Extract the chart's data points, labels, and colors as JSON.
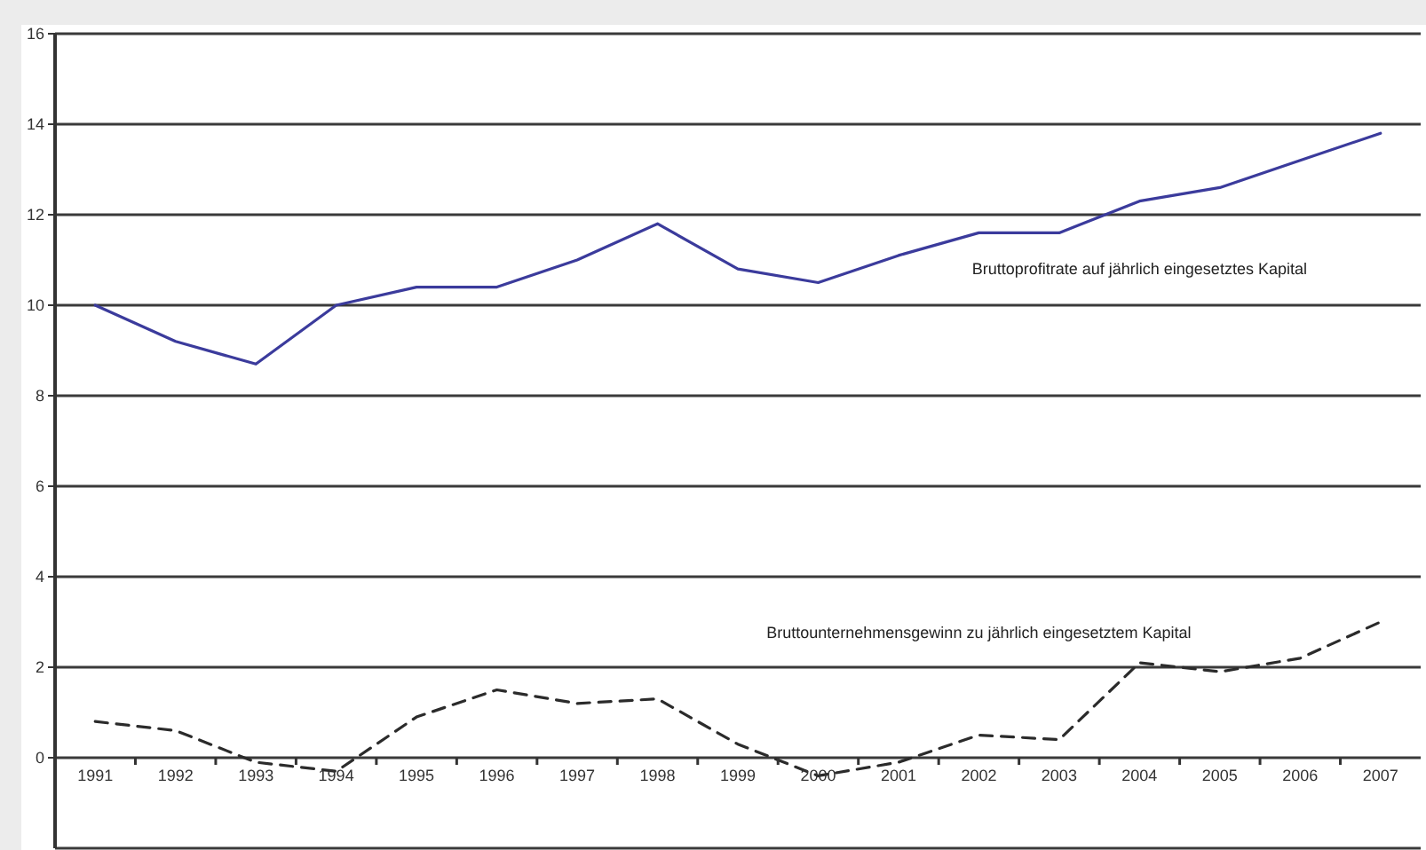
{
  "chart_data": {
    "type": "line",
    "categories": [
      "1991",
      "1992",
      "1993",
      "1994",
      "1995",
      "1996",
      "1997",
      "1998",
      "1999",
      "2000",
      "2001",
      "2002",
      "2003",
      "2004",
      "2005",
      "2006",
      "2007"
    ],
    "series": [
      {
        "name": "Bruttoprofitrate auf jährlich eingesetztes Kapital",
        "color": "#3b3b9c",
        "line_style": "solid",
        "values": [
          10.0,
          9.2,
          8.7,
          10.0,
          10.4,
          10.4,
          11.0,
          11.8,
          10.8,
          10.5,
          11.1,
          11.6,
          11.6,
          12.3,
          12.6,
          13.2,
          13.8
        ]
      },
      {
        "name": "Bruttounternehmensgewinn zu jährlich eingesetztem Kapital",
        "color": "#2b2b2b",
        "line_style": "dashed",
        "values": [
          0.8,
          0.6,
          -0.1,
          -0.3,
          0.9,
          1.5,
          1.2,
          1.3,
          0.3,
          -0.4,
          -0.1,
          0.5,
          0.4,
          2.1,
          1.9,
          2.2,
          3.0
        ]
      }
    ],
    "ylim": [
      -2,
      16
    ],
    "yticks": [
      0,
      2,
      4,
      6,
      8,
      10,
      12,
      14,
      16
    ],
    "grid": "y"
  }
}
